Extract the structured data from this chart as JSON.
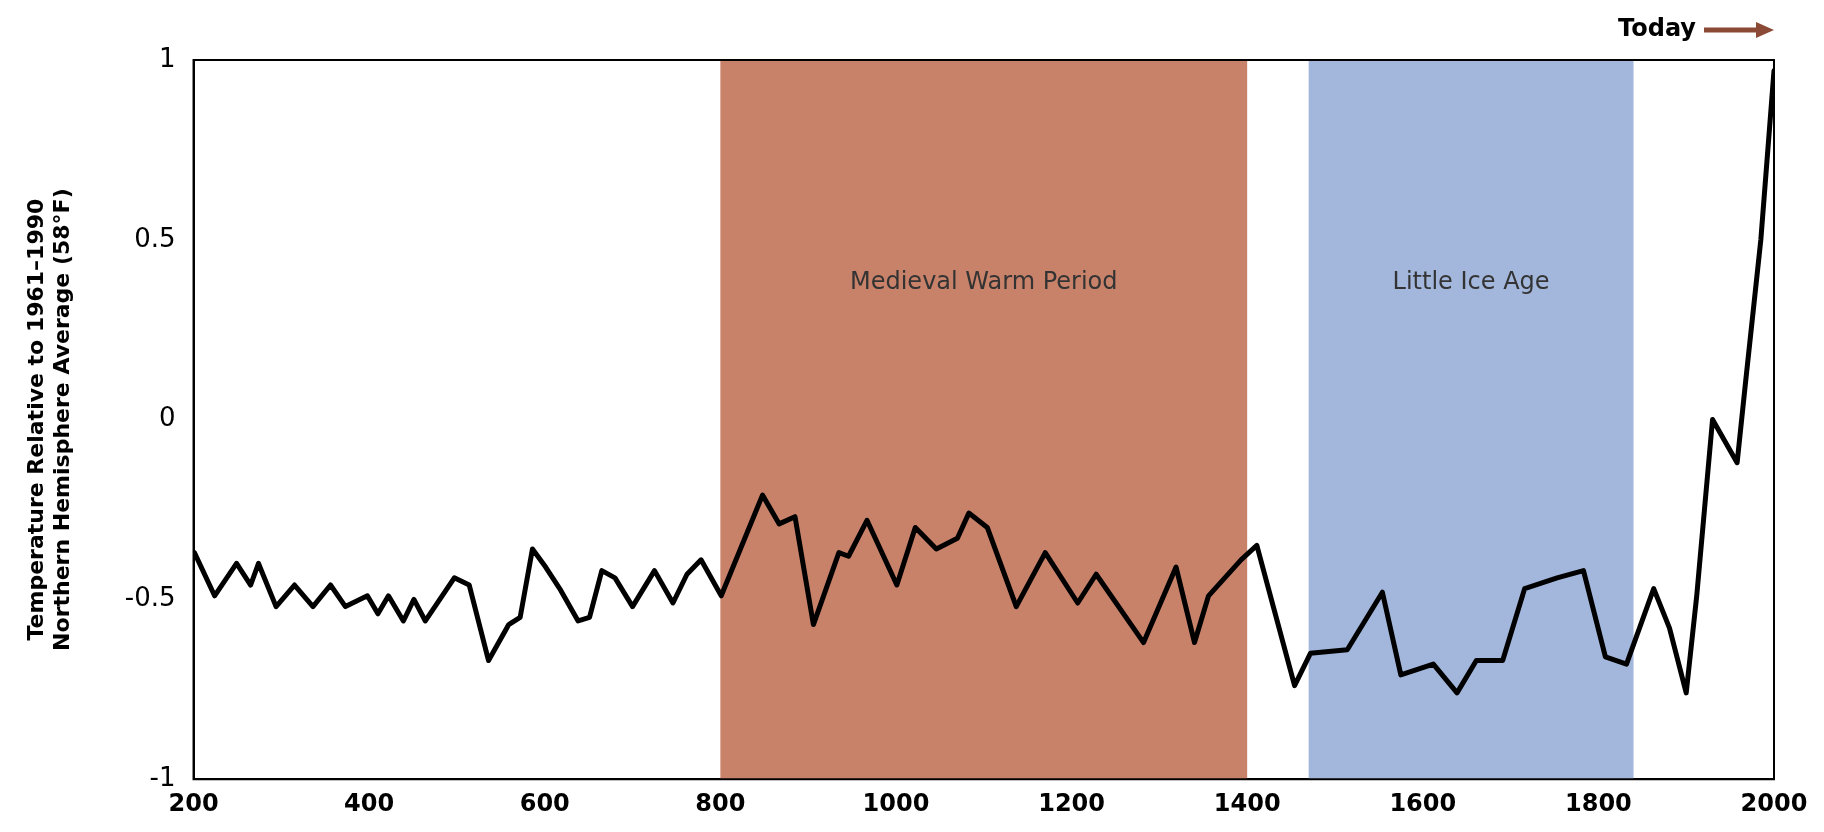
{
  "chart_data": {
    "type": "line",
    "ylabel": "Temperature Relative to 1961–1990\nNorthern Hemisphere Average (58°F)",
    "annotations": [
      "Today"
    ],
    "x": [
      201,
      224,
      249,
      265,
      274,
      294,
      315,
      336,
      356,
      373,
      398,
      410,
      422,
      439,
      451,
      464,
      497,
      514,
      536,
      559,
      572,
      586,
      601,
      617,
      638,
      651,
      665,
      680,
      700,
      725,
      746,
      762,
      778,
      801,
      848,
      867,
      885,
      906,
      935,
      946,
      967,
      1001,
      1022,
      1046,
      1070,
      1083,
      1104,
      1137,
      1170,
      1207,
      1228,
      1282,
      1319,
      1340,
      1356,
      1393,
      1411,
      1454,
      1472,
      1514,
      1554,
      1575,
      1612,
      1639,
      1661,
      1691,
      1716,
      1753,
      1783,
      1808,
      1832,
      1863,
      1881,
      1900,
      1912,
      1930,
      1958,
      1967,
      1985,
      2000
    ],
    "series": [
      {
        "color": "#000000",
        "values": [
          -0.37,
          -0.49,
          -0.4,
          -0.46,
          -0.4,
          -0.52,
          -0.46,
          -0.52,
          -0.46,
          -0.52,
          -0.49,
          -0.54,
          -0.49,
          -0.56,
          -0.5,
          -0.56,
          -0.44,
          -0.46,
          -0.67,
          -0.57,
          -0.55,
          -0.36,
          -0.41,
          -0.47,
          -0.56,
          -0.55,
          -0.42,
          -0.44,
          -0.52,
          -0.42,
          -0.51,
          -0.43,
          -0.39,
          -0.49,
          -0.21,
          -0.29,
          -0.27,
          -0.57,
          -0.37,
          -0.38,
          -0.28,
          -0.46,
          -0.3,
          -0.36,
          -0.33,
          -0.26,
          -0.3,
          -0.52,
          -0.37,
          -0.51,
          -0.43,
          -0.62,
          -0.41,
          -0.62,
          -0.49,
          -0.39,
          -0.35,
          -0.74,
          -0.65,
          -0.64,
          -0.48,
          -0.71,
          -0.68,
          -0.76,
          -0.67,
          -0.67,
          -0.47,
          -0.44,
          -0.42,
          -0.66,
          -0.68,
          -0.47,
          -0.58,
          -0.76,
          -0.49,
          0.0,
          -0.12,
          0.09,
          0.5,
          0.97
        ]
      }
    ],
    "xlim": [
      200,
      2000
    ],
    "xticks": [
      200,
      400,
      600,
      800,
      1000,
      1200,
      1400,
      1600,
      1800,
      2000
    ],
    "ylim": [
      -1,
      1
    ],
    "yticks": [
      -1,
      -0.5,
      0,
      0.5,
      1
    ],
    "bands": [
      {
        "axis": "x",
        "from": 800,
        "to": 1400,
        "label": "Medieval Warm Period",
        "color": "#c8826a"
      },
      {
        "axis": "x",
        "from": 1470,
        "to": 1840,
        "label": "Little Ice Age",
        "color": "#a3b7dc"
      }
    ],
    "grid": false,
    "legend": false,
    "marker": "none",
    "line_style": "solid"
  }
}
